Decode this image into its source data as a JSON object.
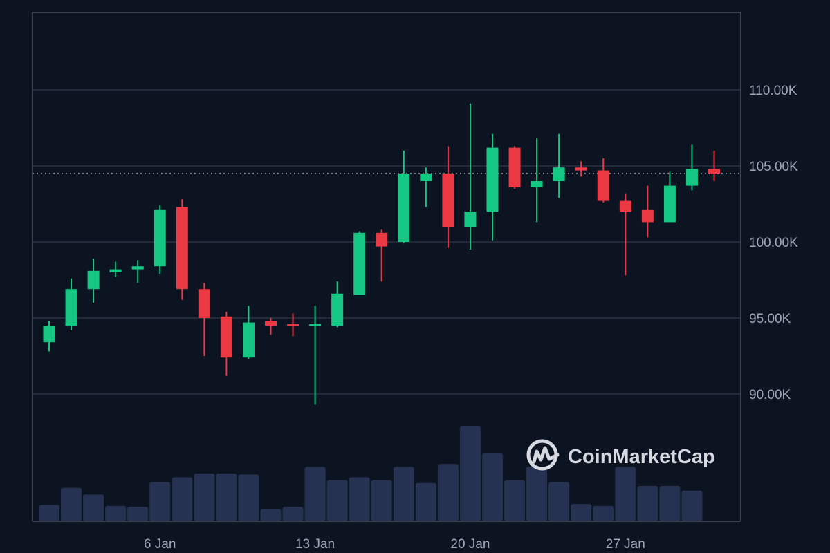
{
  "chart_data": {
    "type": "candlestick",
    "title": "",
    "xlabel": "",
    "ylabel": "",
    "ylim": [
      85000,
      115000
    ],
    "y_ticks": [
      90000,
      95000,
      100000,
      105000,
      110000
    ],
    "y_tick_labels": [
      "90.00K",
      "95.00K",
      "100.00K",
      "105.00K",
      "110.00K"
    ],
    "x_ticks": [
      {
        "label": "6 Jan",
        "date": "2025-01-06"
      },
      {
        "label": "13 Jan",
        "date": "2025-01-13"
      },
      {
        "label": "20 Jan",
        "date": "2025-01-20"
      },
      {
        "label": "27 Jan",
        "date": "2025-01-27"
      }
    ],
    "current_price": 104500,
    "grid": true,
    "colors": {
      "up": "#16c784",
      "down": "#ea3943",
      "volume": "#263252",
      "grid": "#2b3144",
      "axis": "#4a5263",
      "price_line": "#9aa1b3"
    },
    "candles": [
      {
        "date": "2025-01-01",
        "open": 93400,
        "high": 94800,
        "low": 92800,
        "close": 94500
      },
      {
        "date": "2025-01-02",
        "open": 94500,
        "high": 97600,
        "low": 94200,
        "close": 96900
      },
      {
        "date": "2025-01-03",
        "open": 96900,
        "high": 98900,
        "low": 96000,
        "close": 98100
      },
      {
        "date": "2025-01-04",
        "open": 98000,
        "high": 98700,
        "low": 97700,
        "close": 98200
      },
      {
        "date": "2025-01-05",
        "open": 98200,
        "high": 98800,
        "low": 97300,
        "close": 98400
      },
      {
        "date": "2025-01-06",
        "open": 98400,
        "high": 102400,
        "low": 97900,
        "close": 102100
      },
      {
        "date": "2025-01-07",
        "open": 102300,
        "high": 102800,
        "low": 96200,
        "close": 96900
      },
      {
        "date": "2025-01-08",
        "open": 96900,
        "high": 97300,
        "low": 92500,
        "close": 95000
      },
      {
        "date": "2025-01-09",
        "open": 95100,
        "high": 95400,
        "low": 91200,
        "close": 92400
      },
      {
        "date": "2025-01-10",
        "open": 92400,
        "high": 95800,
        "low": 92300,
        "close": 94700
      },
      {
        "date": "2025-01-11",
        "open": 94800,
        "high": 95000,
        "low": 93900,
        "close": 94500
      },
      {
        "date": "2025-01-12",
        "open": 94600,
        "high": 95300,
        "low": 93800,
        "close": 94500
      },
      {
        "date": "2025-01-13",
        "open": 94500,
        "high": 95800,
        "low": 89300,
        "close": 94600
      },
      {
        "date": "2025-01-14",
        "open": 94500,
        "high": 97400,
        "low": 94400,
        "close": 96600
      },
      {
        "date": "2025-01-15",
        "open": 96500,
        "high": 100700,
        "low": 96500,
        "close": 100600
      },
      {
        "date": "2025-01-16",
        "open": 100600,
        "high": 100800,
        "low": 97400,
        "close": 99700
      },
      {
        "date": "2025-01-17",
        "open": 100000,
        "high": 106000,
        "low": 99900,
        "close": 104500
      },
      {
        "date": "2025-01-18",
        "open": 104000,
        "high": 104900,
        "low": 102300,
        "close": 104500
      },
      {
        "date": "2025-01-19",
        "open": 104500,
        "high": 106300,
        "low": 99600,
        "close": 101000
      },
      {
        "date": "2025-01-20",
        "open": 101000,
        "high": 109100,
        "low": 99500,
        "close": 102000
      },
      {
        "date": "2025-01-21",
        "open": 102000,
        "high": 107100,
        "low": 100100,
        "close": 106200
      },
      {
        "date": "2025-01-22",
        "open": 106200,
        "high": 106300,
        "low": 103500,
        "close": 103600
      },
      {
        "date": "2025-01-23",
        "open": 103600,
        "high": 106800,
        "low": 101300,
        "close": 104000
      },
      {
        "date": "2025-01-24",
        "open": 104000,
        "high": 107100,
        "low": 102900,
        "close": 104900
      },
      {
        "date": "2025-01-25",
        "open": 104900,
        "high": 105300,
        "low": 104300,
        "close": 104700
      },
      {
        "date": "2025-01-26",
        "open": 104700,
        "high": 105500,
        "low": 102600,
        "close": 102700
      },
      {
        "date": "2025-01-27",
        "open": 102700,
        "high": 103200,
        "low": 97800,
        "close": 102000
      },
      {
        "date": "2025-01-28",
        "open": 102100,
        "high": 103700,
        "low": 100300,
        "close": 101300
      },
      {
        "date": "2025-01-29",
        "open": 101300,
        "high": 104600,
        "low": 101300,
        "close": 103700
      },
      {
        "date": "2025-01-30",
        "open": 103700,
        "high": 106400,
        "low": 103400,
        "close": 104800
      },
      {
        "date": "2025-01-31",
        "open": 104800,
        "high": 106000,
        "low": 104000,
        "close": 104500
      }
    ],
    "volumes_relative": [
      0.17,
      0.35,
      0.28,
      0.16,
      0.15,
      0.41,
      0.46,
      0.5,
      0.5,
      0.49,
      0.13,
      0.15,
      0.57,
      0.43,
      0.46,
      0.43,
      0.57,
      0.4,
      0.6,
      1.0,
      0.71,
      0.43,
      0.57,
      0.41,
      0.18,
      0.16,
      0.57,
      0.37,
      0.37,
      0.32,
      null
    ]
  },
  "watermark": {
    "text": "CoinMarketCap",
    "icon": "coinmarketcap-logo-icon"
  }
}
